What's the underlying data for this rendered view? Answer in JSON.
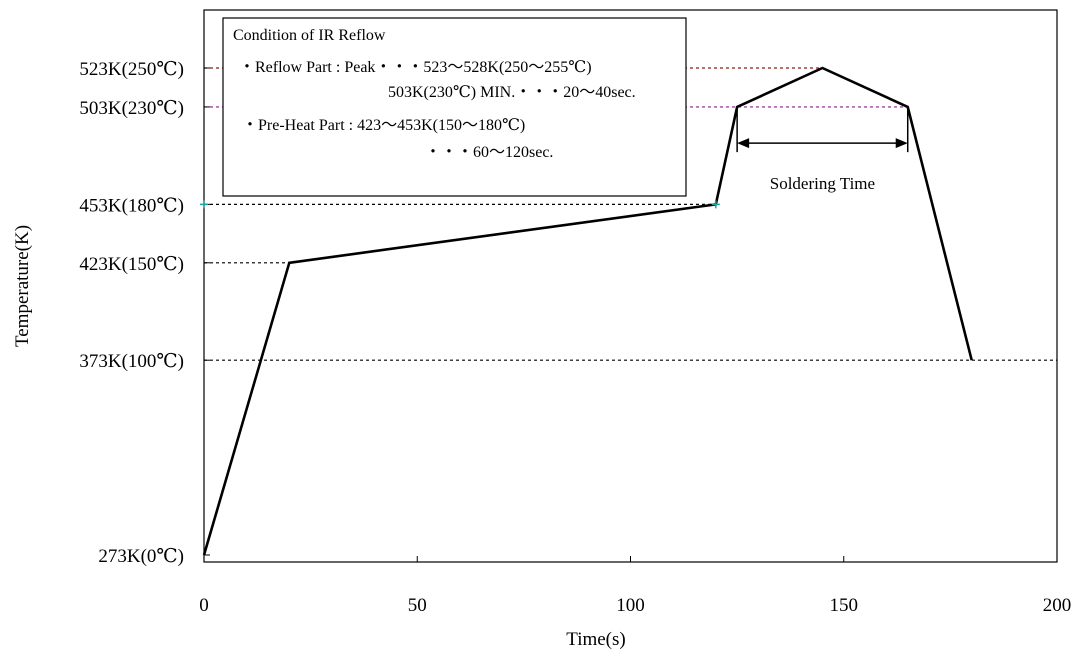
{
  "chart_data": {
    "type": "line",
    "title": "",
    "xlabel": "Time(s)",
    "ylabel": "Temperature(K)",
    "xlim": [
      0,
      200
    ],
    "ylim": [
      273,
      543
    ],
    "x_ticks": [
      {
        "value": 0,
        "label": "0"
      },
      {
        "value": 50,
        "label": "50"
      },
      {
        "value": 100,
        "label": "100"
      },
      {
        "value": 150,
        "label": "150"
      },
      {
        "value": 200,
        "label": "200"
      }
    ],
    "y_ticks": [
      {
        "value": 273,
        "label": "273K(0℃)"
      },
      {
        "value": 373,
        "label": "373K(100℃)"
      },
      {
        "value": 423,
        "label": "423K(150℃)"
      },
      {
        "value": 453,
        "label": "453K(180℃)"
      },
      {
        "value": 503,
        "label": "503K(230℃)"
      },
      {
        "value": 523,
        "label": "523K(250℃)"
      }
    ],
    "series": [
      {
        "x": [
          0,
          20,
          120,
          125,
          145,
          165,
          180
        ],
        "y": [
          273,
          423,
          453,
          503,
          523,
          503,
          373
        ],
        "color": "#000000"
      }
    ],
    "reference_lines": [
      {
        "y": 523,
        "x_end": 145,
        "color": "#8b1a1a",
        "style": "dotted"
      },
      {
        "y": 503,
        "x_end": 165,
        "color": "#8b1a8b",
        "style": "dotted"
      },
      {
        "y": 453,
        "x_end": 120,
        "color": "#000000",
        "style": "dotted"
      },
      {
        "y": 423,
        "x_end": 20,
        "color": "#000000",
        "style": "dotted"
      },
      {
        "y": 373,
        "x_end": 200,
        "color": "#000000",
        "style": "dotted"
      }
    ],
    "markers": [
      {
        "x": 0,
        "y": 453,
        "color": "#20a0a0"
      },
      {
        "x": 120,
        "y": 453,
        "color": "#20a0a0"
      }
    ],
    "annotations": {
      "soldering_time": {
        "label": "Soldering Time",
        "x_start": 125,
        "x_end": 165,
        "y": 487
      }
    },
    "legend_box": {
      "title": "Condition of IR Reflow",
      "lines": [
        "・Reflow Part : Peak・・・523～528K(250～255℃)",
        "503K(230℃) MIN.・・・20～40sec.",
        "・Pre-Heat Part : 423～453K(150～180℃)",
        "・・・60～120sec."
      ]
    },
    "grid": false,
    "legend": "top-left"
  }
}
